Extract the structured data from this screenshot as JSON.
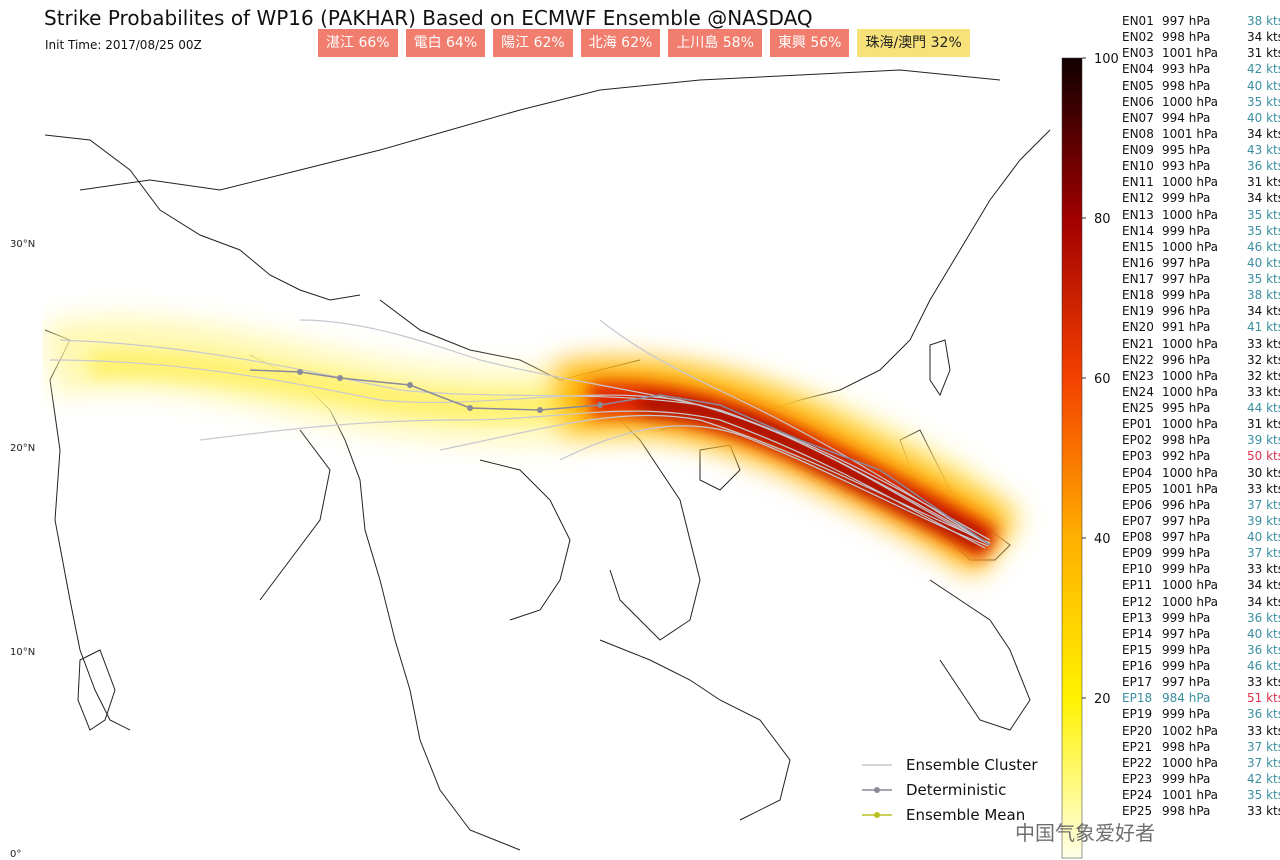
{
  "header": {
    "title": "Strike Probabilites of WP16 (PAKHAR) Based on ECMWF Ensemble @NASDAQ",
    "init_time": "Init Time: 2017/08/25 00Z"
  },
  "locations": [
    {
      "label": "湛江 66%",
      "color": "#f07d6e"
    },
    {
      "label": "電白 64%",
      "color": "#f07d6e"
    },
    {
      "label": "陽江 62%",
      "color": "#f07d6e"
    },
    {
      "label": "北海 62%",
      "color": "#f07d6e"
    },
    {
      "label": "上川島 58%",
      "color": "#f07d6e"
    },
    {
      "label": "東興 56%",
      "color": "#f07d6e"
    },
    {
      "label": "珠海/澳門 32%",
      "color": "#f7e27a"
    }
  ],
  "latitudes": [
    "30°N",
    "20°N",
    "10°N",
    "0°"
  ],
  "colorbar": {
    "lim": [
      0,
      100
    ],
    "ticks": [
      20,
      40,
      60,
      80,
      100
    ]
  },
  "members": [
    {
      "id": "EN01",
      "pressure": "997 hPa",
      "wind": "38 kts",
      "tone": "teal"
    },
    {
      "id": "EN02",
      "pressure": "998 hPa",
      "wind": "34 kts",
      "tone": "black"
    },
    {
      "id": "EN03",
      "pressure": "1001 hPa",
      "wind": "31 kts",
      "tone": "black"
    },
    {
      "id": "EN04",
      "pressure": "993 hPa",
      "wind": "42 kts",
      "tone": "teal"
    },
    {
      "id": "EN05",
      "pressure": "998 hPa",
      "wind": "40 kts",
      "tone": "teal"
    },
    {
      "id": "EN06",
      "pressure": "1000 hPa",
      "wind": "35 kts",
      "tone": "teal"
    },
    {
      "id": "EN07",
      "pressure": "994 hPa",
      "wind": "40 kts",
      "tone": "teal"
    },
    {
      "id": "EN08",
      "pressure": "1001 hPa",
      "wind": "34 kts",
      "tone": "black"
    },
    {
      "id": "EN09",
      "pressure": "995 hPa",
      "wind": "43 kts",
      "tone": "teal"
    },
    {
      "id": "EN10",
      "pressure": "993 hPa",
      "wind": "36 kts",
      "tone": "teal"
    },
    {
      "id": "EN11",
      "pressure": "1000 hPa",
      "wind": "31 kts",
      "tone": "black"
    },
    {
      "id": "EN12",
      "pressure": "999 hPa",
      "wind": "34 kts",
      "tone": "black"
    },
    {
      "id": "EN13",
      "pressure": "1000 hPa",
      "wind": "35 kts",
      "tone": "teal"
    },
    {
      "id": "EN14",
      "pressure": "999 hPa",
      "wind": "35 kts",
      "tone": "teal"
    },
    {
      "id": "EN15",
      "pressure": "1000 hPa",
      "wind": "46 kts",
      "tone": "teal"
    },
    {
      "id": "EN16",
      "pressure": "997 hPa",
      "wind": "40 kts",
      "tone": "teal"
    },
    {
      "id": "EN17",
      "pressure": "997 hPa",
      "wind": "35 kts",
      "tone": "teal"
    },
    {
      "id": "EN18",
      "pressure": "999 hPa",
      "wind": "38 kts",
      "tone": "teal"
    },
    {
      "id": "EN19",
      "pressure": "996 hPa",
      "wind": "34 kts",
      "tone": "black"
    },
    {
      "id": "EN20",
      "pressure": "991 hPa",
      "wind": "41 kts",
      "tone": "teal"
    },
    {
      "id": "EN21",
      "pressure": "1000 hPa",
      "wind": "33 kts",
      "tone": "black"
    },
    {
      "id": "EN22",
      "pressure": "996 hPa",
      "wind": "32 kts",
      "tone": "black"
    },
    {
      "id": "EN23",
      "pressure": "1000 hPa",
      "wind": "32 kts",
      "tone": "black"
    },
    {
      "id": "EN24",
      "pressure": "1000 hPa",
      "wind": "33 kts",
      "tone": "black"
    },
    {
      "id": "EN25",
      "pressure": "995 hPa",
      "wind": "44 kts",
      "tone": "teal"
    },
    {
      "id": "EP01",
      "pressure": "1000 hPa",
      "wind": "31 kts",
      "tone": "black"
    },
    {
      "id": "EP02",
      "pressure": "998 hPa",
      "wind": "39 kts",
      "tone": "teal"
    },
    {
      "id": "EP03",
      "pressure": "992 hPa",
      "wind": "50 kts",
      "tone": "red"
    },
    {
      "id": "EP04",
      "pressure": "1000 hPa",
      "wind": "30 kts",
      "tone": "black"
    },
    {
      "id": "EP05",
      "pressure": "1001 hPa",
      "wind": "33 kts",
      "tone": "black"
    },
    {
      "id": "EP06",
      "pressure": "996 hPa",
      "wind": "37 kts",
      "tone": "teal"
    },
    {
      "id": "EP07",
      "pressure": "997 hPa",
      "wind": "39 kts",
      "tone": "teal"
    },
    {
      "id": "EP08",
      "pressure": "997 hPa",
      "wind": "40 kts",
      "tone": "teal"
    },
    {
      "id": "EP09",
      "pressure": "999 hPa",
      "wind": "37 kts",
      "tone": "teal"
    },
    {
      "id": "EP10",
      "pressure": "999 hPa",
      "wind": "33 kts",
      "tone": "black"
    },
    {
      "id": "EP11",
      "pressure": "1000 hPa",
      "wind": "34 kts",
      "tone": "black"
    },
    {
      "id": "EP12",
      "pressure": "1000 hPa",
      "wind": "34 kts",
      "tone": "black"
    },
    {
      "id": "EP13",
      "pressure": "999 hPa",
      "wind": "36 kts",
      "tone": "teal"
    },
    {
      "id": "EP14",
      "pressure": "997 hPa",
      "wind": "40 kts",
      "tone": "teal"
    },
    {
      "id": "EP15",
      "pressure": "999 hPa",
      "wind": "36 kts",
      "tone": "teal"
    },
    {
      "id": "EP16",
      "pressure": "999 hPa",
      "wind": "46 kts",
      "tone": "teal"
    },
    {
      "id": "EP17",
      "pressure": "997 hPa",
      "wind": "33 kts",
      "tone": "black"
    },
    {
      "id": "EP18",
      "pressure": "984 hPa",
      "wind": "51 kts",
      "tone": "red"
    },
    {
      "id": "EP19",
      "pressure": "999 hPa",
      "wind": "36 kts",
      "tone": "teal"
    },
    {
      "id": "EP20",
      "pressure": "1002 hPa",
      "wind": "33 kts",
      "tone": "black"
    },
    {
      "id": "EP21",
      "pressure": "998 hPa",
      "wind": "37 kts",
      "tone": "teal"
    },
    {
      "id": "EP22",
      "pressure": "1000 hPa",
      "wind": "37 kts",
      "tone": "teal"
    },
    {
      "id": "EP23",
      "pressure": "999 hPa",
      "wind": "42 kts",
      "tone": "teal"
    },
    {
      "id": "EP24",
      "pressure": "1001 hPa",
      "wind": "35 kts",
      "tone": "teal"
    },
    {
      "id": "EP25",
      "pressure": "998 hPa",
      "wind": "33 kts",
      "tone": "black"
    }
  ],
  "legend": [
    "Ensemble Cluster",
    "Deterministic",
    "Ensemble Mean"
  ],
  "watermark": "中国气象爱好者"
}
